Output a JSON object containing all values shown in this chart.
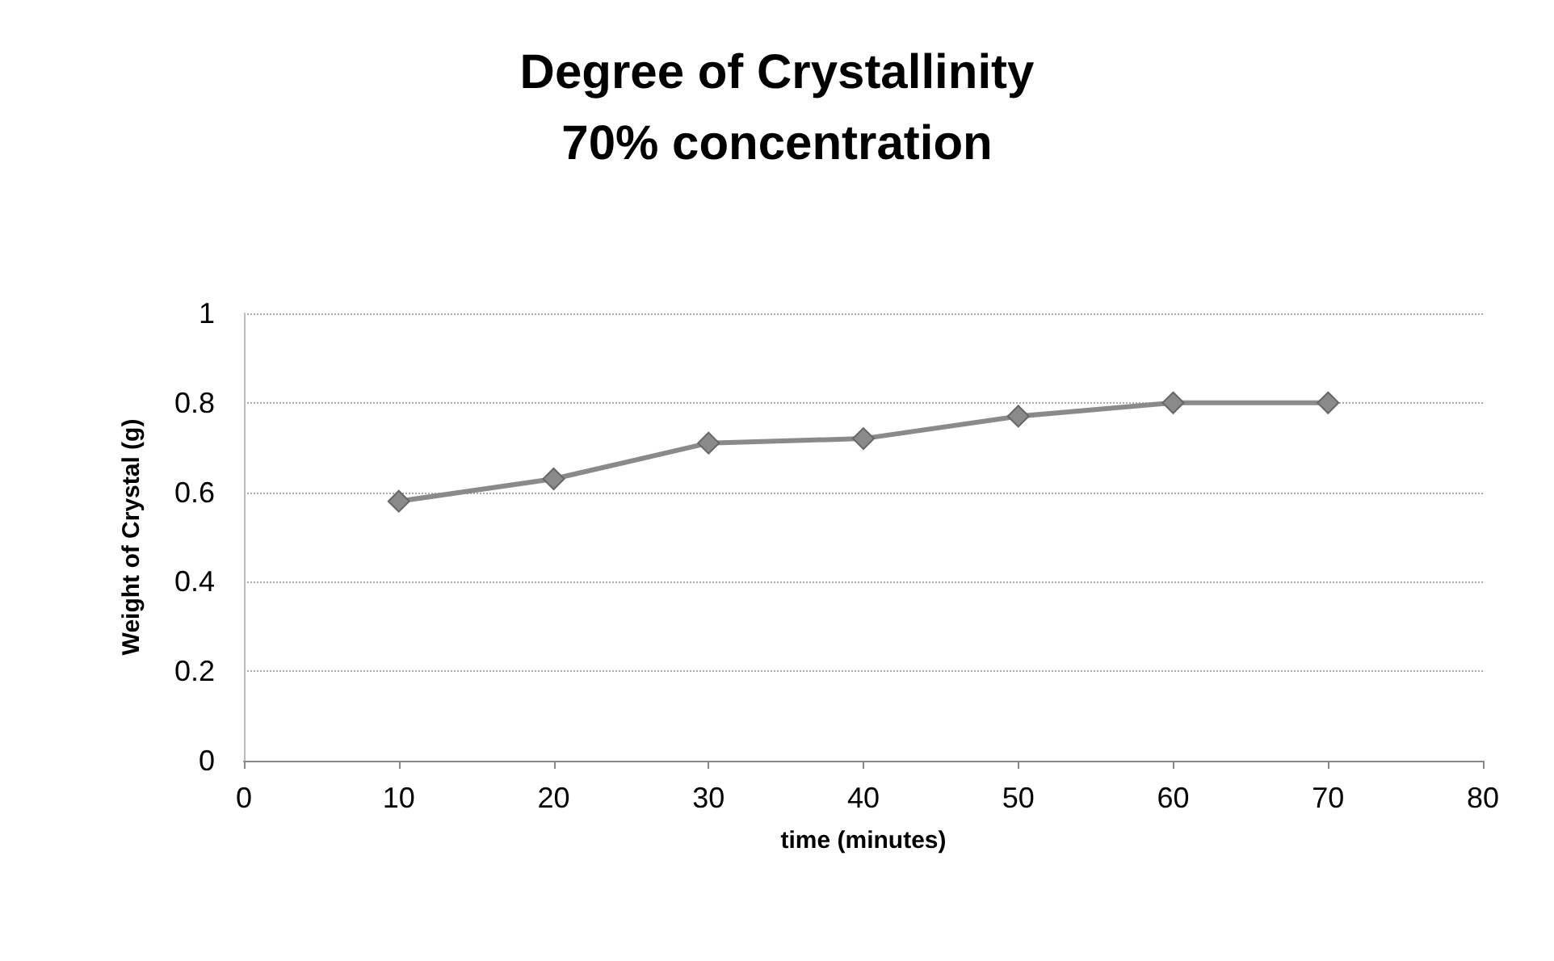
{
  "chart_data": {
    "type": "line",
    "title": "Degree of Crystallinity\n70% concentration",
    "xlabel": "time (minutes)",
    "ylabel": "Weight of Crystal (g)",
    "x": [
      10,
      20,
      30,
      40,
      50,
      60,
      70
    ],
    "series": [
      {
        "color": "#8a8a8a",
        "values": [
          0.58,
          0.63,
          0.71,
          0.72,
          0.77,
          0.8,
          0.8
        ]
      }
    ],
    "xlim": [
      0,
      80
    ],
    "xticks": [
      0,
      10,
      20,
      30,
      40,
      50,
      60,
      70,
      80
    ],
    "ylim": [
      0,
      1
    ],
    "yticks": [
      0,
      0.2,
      0.4,
      0.6,
      0.8,
      1
    ],
    "grid": "y",
    "marker": "diamond",
    "line_style": "solid"
  }
}
